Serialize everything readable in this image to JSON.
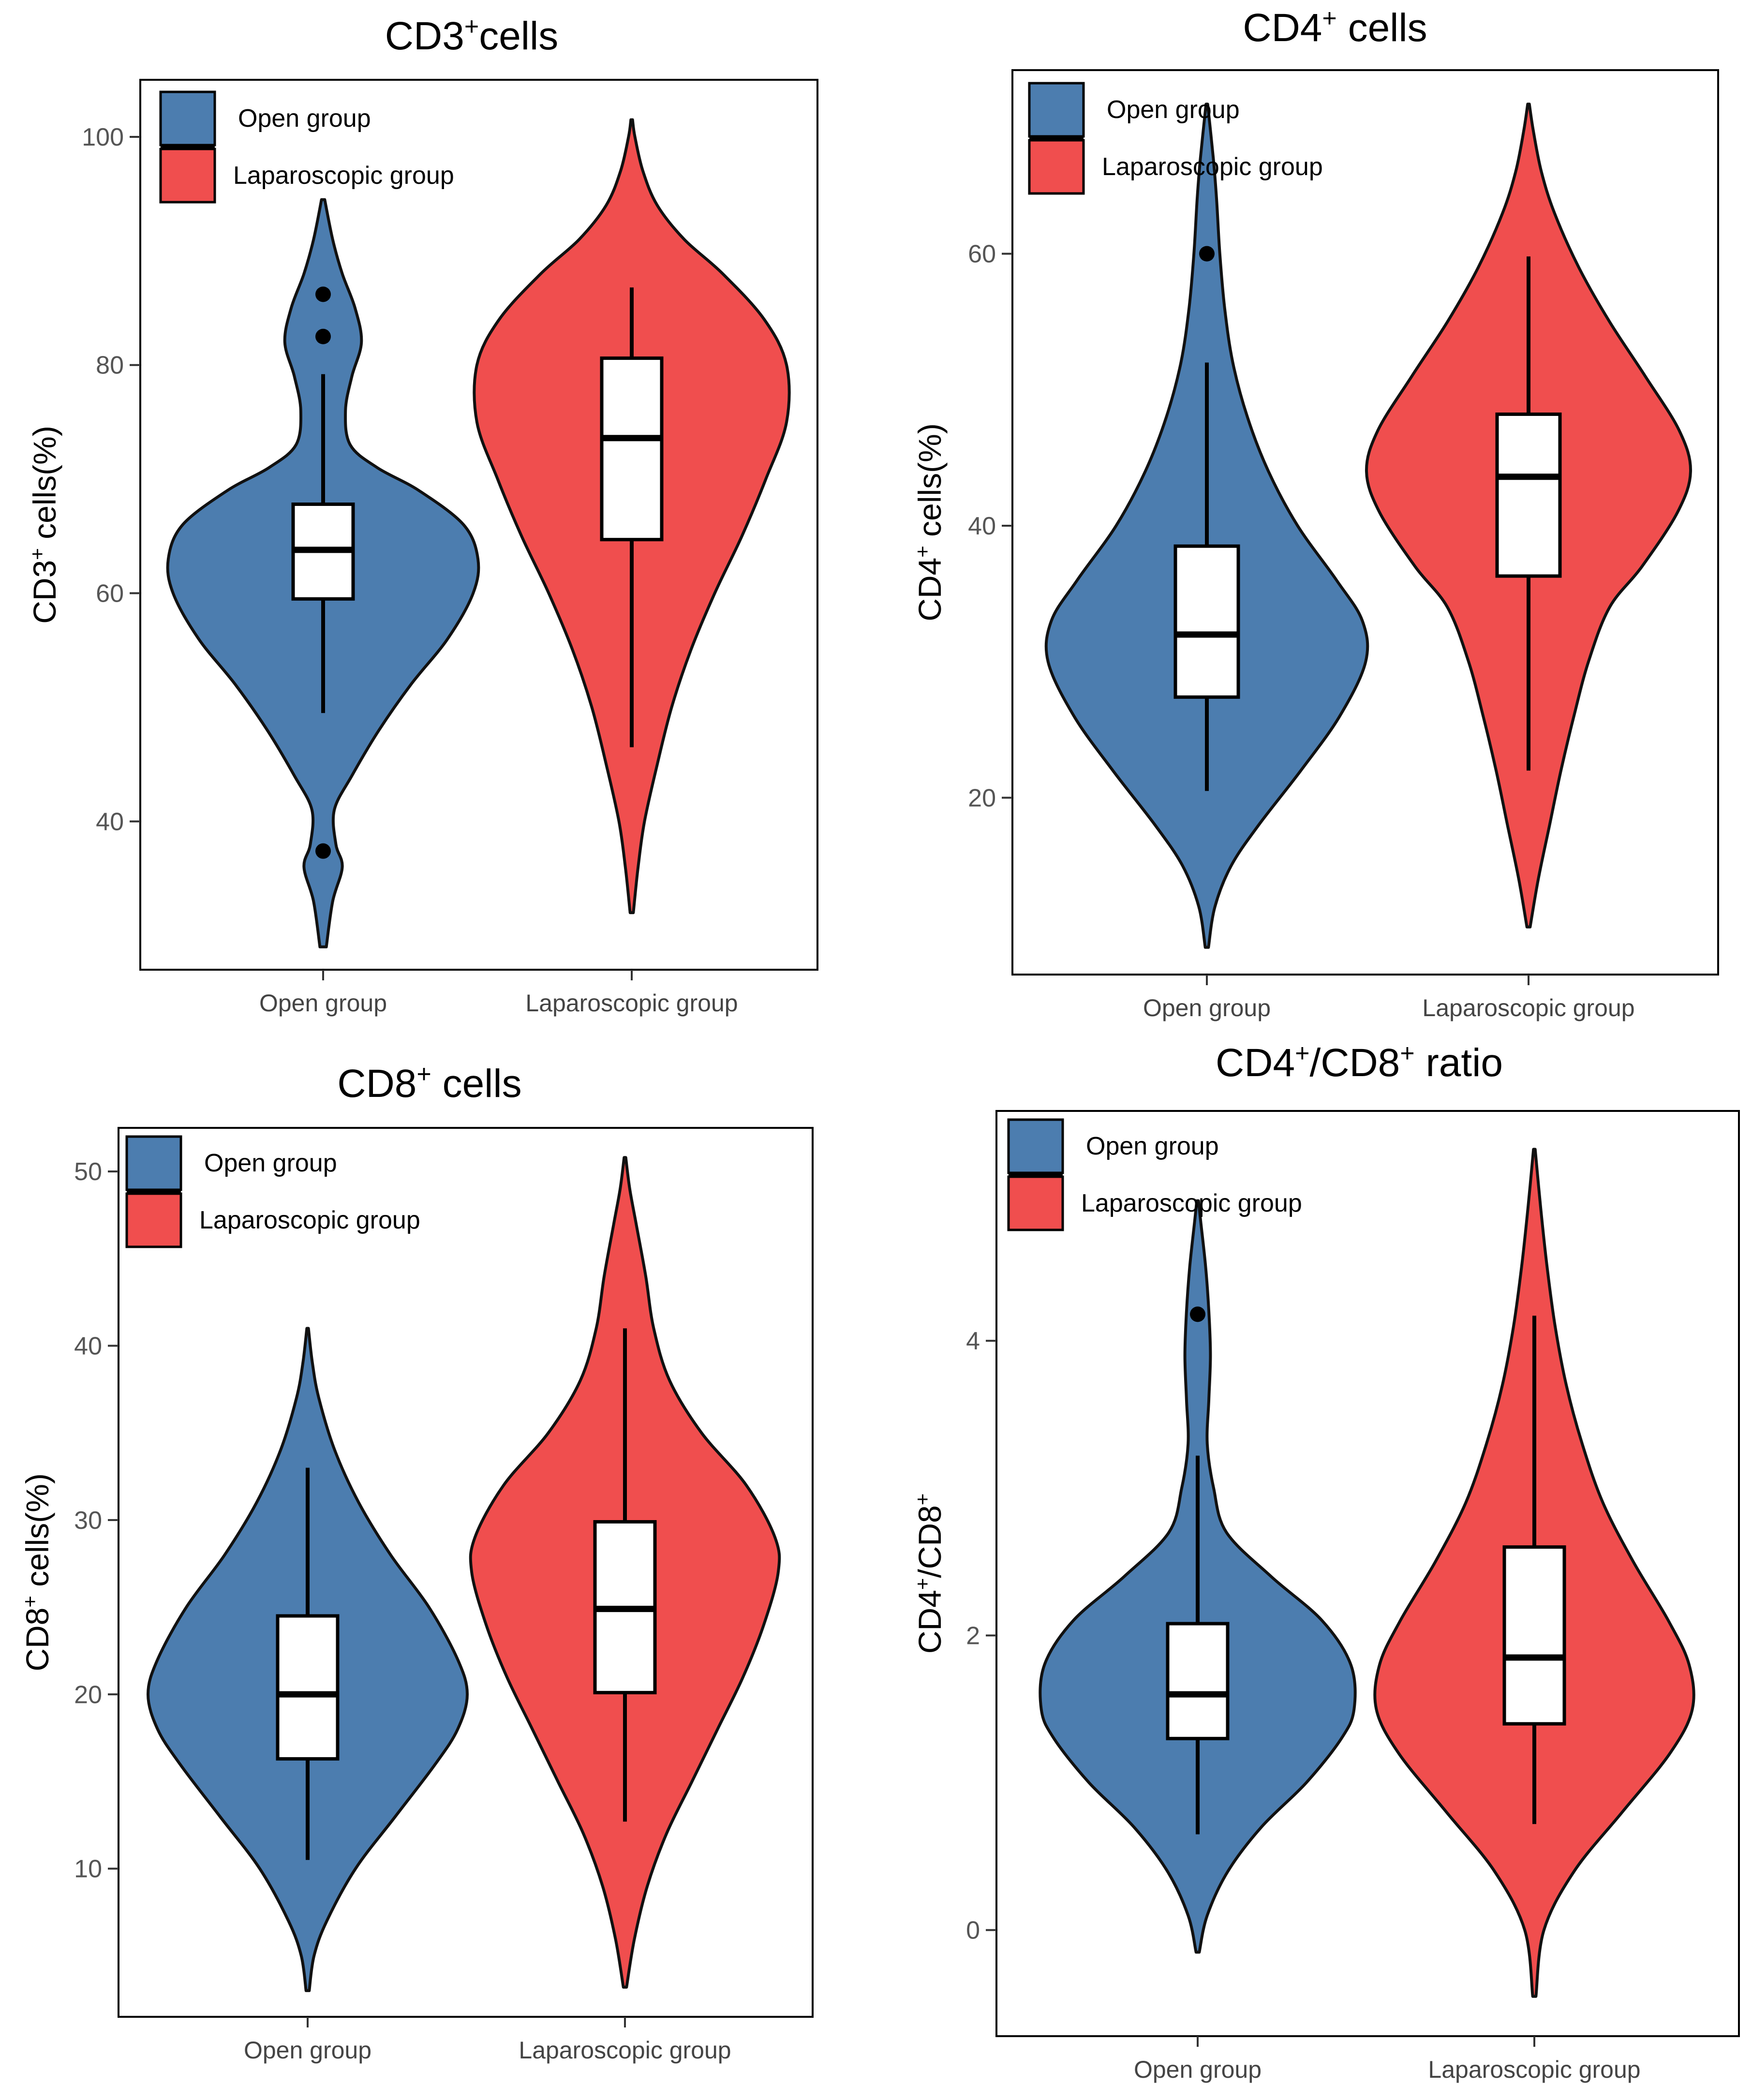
{
  "legend": {
    "open_label": "Open group",
    "lap_label": "Laparoscopic group",
    "open_color": "#4C7DAF",
    "lap_color": "#F04E4E"
  },
  "chart_data": [
    {
      "id": "cd3",
      "type": "violin",
      "title": "CD3",
      "title_sup": "+",
      "title_rest": "cells",
      "ylabel_pre": "CD3",
      "ylabel_sup": "+",
      "ylabel_post": " cells(%)",
      "yticks": [
        40,
        60,
        80,
        100
      ],
      "ylim": [
        27,
        105
      ],
      "categories": [
        "Open group",
        "Laparoscopic group"
      ],
      "groups": [
        {
          "name": "Open group",
          "color": "#4C7DAF",
          "violin_min": 29,
          "violin_max": 94.5,
          "density": [
            [
              29,
              0.02
            ],
            [
              33,
              0.06
            ],
            [
              36,
              0.12
            ],
            [
              38,
              0.08
            ],
            [
              41,
              0.07
            ],
            [
              44,
              0.18
            ],
            [
              48,
              0.35
            ],
            [
              52,
              0.55
            ],
            [
              56,
              0.78
            ],
            [
              60,
              0.94
            ],
            [
              63,
              0.97
            ],
            [
              66,
              0.88
            ],
            [
              69,
              0.6
            ],
            [
              71,
              0.34
            ],
            [
              73,
              0.17
            ],
            [
              76,
              0.14
            ],
            [
              79,
              0.18
            ],
            [
              82,
              0.24
            ],
            [
              85,
              0.2
            ],
            [
              88,
              0.12
            ],
            [
              91,
              0.06
            ],
            [
              94.5,
              0.01
            ]
          ],
          "box": {
            "q1": 59.5,
            "median": 63.8,
            "q3": 67.8,
            "whisker_low": 49.5,
            "whisker_high": 79.2
          },
          "outliers": [
            37.4,
            82.5,
            86.2
          ]
        },
        {
          "name": "Laparoscopic group",
          "color": "#F04E4E",
          "violin_min": 32,
          "violin_max": 101.5,
          "density": [
            [
              32,
              0.01
            ],
            [
              36,
              0.04
            ],
            [
              40,
              0.08
            ],
            [
              45,
              0.16
            ],
            [
              50,
              0.25
            ],
            [
              55,
              0.37
            ],
            [
              60,
              0.52
            ],
            [
              65,
              0.69
            ],
            [
              70,
              0.84
            ],
            [
              75,
              0.97
            ],
            [
              80,
              0.97
            ],
            [
              84,
              0.83
            ],
            [
              88,
              0.57
            ],
            [
              91,
              0.33
            ],
            [
              94,
              0.16
            ],
            [
              97,
              0.07
            ],
            [
              100,
              0.02
            ],
            [
              101.5,
              0.005
            ]
          ],
          "box": {
            "q1": 64.7,
            "median": 73.6,
            "q3": 80.6,
            "whisker_low": 46.5,
            "whisker_high": 86.8
          },
          "outliers": []
        }
      ]
    },
    {
      "id": "cd4",
      "type": "violin",
      "title": "CD4",
      "title_sup": "+",
      "title_rest": " cells",
      "ylabel_pre": "CD4",
      "ylabel_sup": "+",
      "ylabel_post": " cells(%)",
      "yticks": [
        20,
        40,
        60
      ],
      "ylim": [
        7,
        73.5
      ],
      "categories": [
        "Open group",
        "Laparoscopic group"
      ],
      "groups": [
        {
          "name": "Open group",
          "color": "#4C7DAF",
          "violin_min": 9,
          "violin_max": 71,
          "density": [
            [
              9,
              0.01
            ],
            [
              12,
              0.05
            ],
            [
              15,
              0.15
            ],
            [
              18,
              0.32
            ],
            [
              22,
              0.58
            ],
            [
              26,
              0.82
            ],
            [
              30,
              0.98
            ],
            [
              33,
              0.96
            ],
            [
              36,
              0.8
            ],
            [
              40,
              0.56
            ],
            [
              44,
              0.38
            ],
            [
              48,
              0.25
            ],
            [
              52,
              0.16
            ],
            [
              56,
              0.11
            ],
            [
              60,
              0.08
            ],
            [
              64,
              0.06
            ],
            [
              67,
              0.04
            ],
            [
              71,
              0.005
            ]
          ],
          "box": {
            "q1": 27.4,
            "median": 32.0,
            "q3": 38.5,
            "whisker_low": 20.5,
            "whisker_high": 52.0
          },
          "outliers": [
            60.0
          ]
        },
        {
          "name": "Laparoscopic group",
          "color": "#F04E4E",
          "violin_min": 10.5,
          "violin_max": 71,
          "density": [
            [
              10.5,
              0.01
            ],
            [
              14,
              0.06
            ],
            [
              18,
              0.13
            ],
            [
              22,
              0.2
            ],
            [
              26,
              0.28
            ],
            [
              30,
              0.37
            ],
            [
              34,
              0.5
            ],
            [
              37,
              0.7
            ],
            [
              41,
              0.92
            ],
            [
              44,
              1.0
            ],
            [
              47,
              0.93
            ],
            [
              51,
              0.72
            ],
            [
              55,
              0.5
            ],
            [
              59,
              0.31
            ],
            [
              63,
              0.16
            ],
            [
              66,
              0.08
            ],
            [
              69,
              0.03
            ],
            [
              71,
              0.005
            ]
          ],
          "box": {
            "q1": 36.3,
            "median": 43.6,
            "q3": 48.2,
            "whisker_low": 22.0,
            "whisker_high": 59.8
          },
          "outliers": []
        }
      ]
    },
    {
      "id": "cd8",
      "type": "violin",
      "title": "CD8",
      "title_sup": "+",
      "title_rest": " cells",
      "ylabel_pre": "CD8",
      "ylabel_sup": "+",
      "ylabel_post": " cells(%)",
      "yticks": [
        10,
        20,
        30,
        40,
        50
      ],
      "ylim": [
        1.5,
        52.5
      ],
      "categories": [
        "Open group",
        "Laparoscopic group"
      ],
      "groups": [
        {
          "name": "Open group",
          "color": "#4C7DAF",
          "violin_min": 3,
          "violin_max": 41,
          "density": [
            [
              3,
              0.01
            ],
            [
              5,
              0.04
            ],
            [
              7,
              0.12
            ],
            [
              10,
              0.3
            ],
            [
              13,
              0.55
            ],
            [
              16,
              0.8
            ],
            [
              18,
              0.94
            ],
            [
              20,
              1.0
            ],
            [
              22,
              0.94
            ],
            [
              25,
              0.76
            ],
            [
              28,
              0.52
            ],
            [
              31,
              0.32
            ],
            [
              34,
              0.17
            ],
            [
              37,
              0.07
            ],
            [
              39,
              0.03
            ],
            [
              41,
              0.005
            ]
          ],
          "box": {
            "q1": 16.3,
            "median": 20.0,
            "q3": 24.5,
            "whisker_low": 10.5,
            "whisker_high": 33.0
          },
          "outliers": []
        },
        {
          "name": "Laparoscopic group",
          "color": "#F04E4E",
          "violin_min": 3.2,
          "violin_max": 50.8,
          "density": [
            [
              3.2,
              0.01
            ],
            [
              6,
              0.06
            ],
            [
              9,
              0.14
            ],
            [
              12,
              0.26
            ],
            [
              15,
              0.42
            ],
            [
              18,
              0.58
            ],
            [
              21,
              0.74
            ],
            [
              24,
              0.87
            ],
            [
              27,
              0.96
            ],
            [
              29,
              0.94
            ],
            [
              32,
              0.76
            ],
            [
              35,
              0.48
            ],
            [
              38,
              0.28
            ],
            [
              41,
              0.18
            ],
            [
              44,
              0.13
            ],
            [
              47,
              0.07
            ],
            [
              49,
              0.03
            ],
            [
              50.8,
              0.005
            ]
          ],
          "box": {
            "q1": 20.1,
            "median": 24.9,
            "q3": 29.9,
            "whisker_low": 12.7,
            "whisker_high": 41.0
          },
          "outliers": []
        }
      ]
    },
    {
      "id": "ratio",
      "type": "violin",
      "title": "CD4",
      "title_sup": "+",
      "title_rest": "/CD8",
      "title_sup2": "+",
      "title_rest2": " ratio",
      "ylabel_pre": "CD4",
      "ylabel_sup": "+",
      "ylabel_post": "/CD8",
      "ylabel_sup2": "+",
      "yticks": [
        0,
        2,
        4
      ],
      "ylim": [
        -0.72,
        5.56
      ],
      "categories": [
        "Open group",
        "Laparoscopic group"
      ],
      "groups": [
        {
          "name": "Open group",
          "color": "#4C7DAF",
          "violin_min": -0.15,
          "violin_max": 4.95,
          "density": [
            [
              -0.15,
              0.01
            ],
            [
              0.1,
              0.06
            ],
            [
              0.4,
              0.19
            ],
            [
              0.7,
              0.4
            ],
            [
              1.0,
              0.68
            ],
            [
              1.3,
              0.9
            ],
            [
              1.5,
              0.98
            ],
            [
              1.8,
              0.96
            ],
            [
              2.1,
              0.78
            ],
            [
              2.4,
              0.46
            ],
            [
              2.7,
              0.18
            ],
            [
              3.0,
              0.1
            ],
            [
              3.3,
              0.06
            ],
            [
              3.6,
              0.07
            ],
            [
              3.9,
              0.08
            ],
            [
              4.2,
              0.07
            ],
            [
              4.5,
              0.05
            ],
            [
              4.8,
              0.02
            ],
            [
              4.95,
              0.005
            ]
          ],
          "box": {
            "q1": 1.3,
            "median": 1.6,
            "q3": 2.08,
            "whisker_low": 0.65,
            "whisker_high": 3.22
          },
          "outliers": [
            4.18
          ]
        },
        {
          "name": "Laparoscopic group",
          "color": "#F04E4E",
          "violin_min": -0.45,
          "violin_max": 5.3,
          "density": [
            [
              -0.45,
              0.01
            ],
            [
              0.0,
              0.06
            ],
            [
              0.4,
              0.25
            ],
            [
              0.8,
              0.55
            ],
            [
              1.2,
              0.85
            ],
            [
              1.5,
              0.99
            ],
            [
              1.8,
              0.97
            ],
            [
              2.1,
              0.84
            ],
            [
              2.5,
              0.62
            ],
            [
              2.9,
              0.43
            ],
            [
              3.3,
              0.3
            ],
            [
              3.7,
              0.2
            ],
            [
              4.1,
              0.13
            ],
            [
              4.5,
              0.08
            ],
            [
              4.9,
              0.04
            ],
            [
              5.3,
              0.005
            ]
          ],
          "box": {
            "q1": 1.4,
            "median": 1.85,
            "q3": 2.6,
            "whisker_low": 0.72,
            "whisker_high": 4.17
          },
          "outliers": []
        }
      ]
    }
  ]
}
